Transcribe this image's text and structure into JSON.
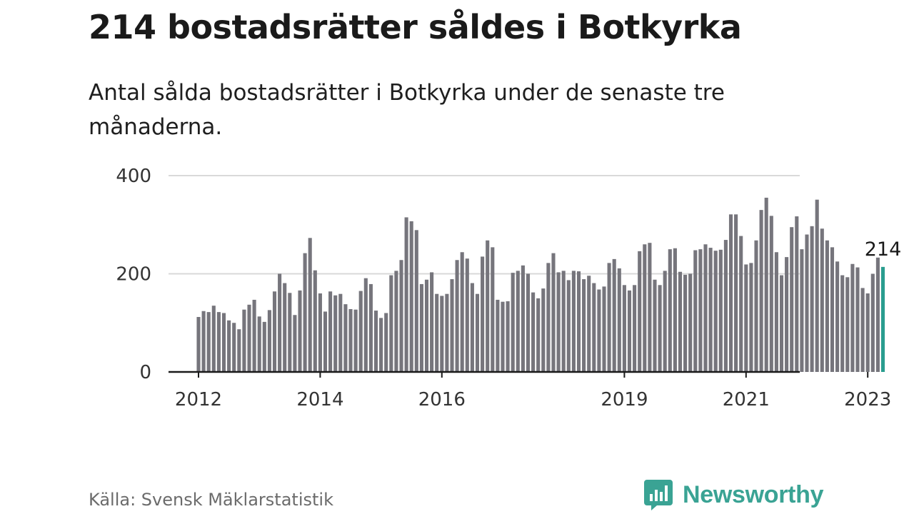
{
  "header": {
    "title": "214 bostadsrätter såldes i Botkyrka",
    "subtitle": "Antal sålda bostadsrätter i Botkyrka under de senaste tre månaderna."
  },
  "footer": {
    "source": "Källa: Svensk Mäklarstatistik",
    "brand": "Newsworthy"
  },
  "colors": {
    "bar": "#76757c",
    "highlight": "#2a9d8f",
    "grid": "#d9d9d9",
    "axis": "#1a1a1a",
    "brand": "#3aa394"
  },
  "chart_data": {
    "type": "bar",
    "title": "214 bostadsrätter såldes i Botkyrka",
    "xlabel": "",
    "ylabel": "",
    "ylim": [
      0,
      400
    ],
    "y_ticks": [
      0,
      200,
      400
    ],
    "x_ticks": [
      {
        "label": "2012",
        "index": 0
      },
      {
        "label": "2014",
        "index": 24
      },
      {
        "label": "2016",
        "index": 48
      },
      {
        "label": "2019",
        "index": 84
      },
      {
        "label": "2021",
        "index": 108
      },
      {
        "label": "2023",
        "index": 132
      }
    ],
    "start": "2012-01",
    "highlight_label": "214",
    "values": [
      112,
      124,
      122,
      135,
      122,
      120,
      105,
      100,
      87,
      127,
      137,
      147,
      113,
      102,
      126,
      164,
      200,
      181,
      161,
      116,
      166,
      242,
      273,
      207,
      160,
      123,
      164,
      156,
      159,
      138,
      128,
      127,
      165,
      191,
      179,
      125,
      110,
      120,
      197,
      206,
      228,
      315,
      307,
      289,
      179,
      188,
      203,
      159,
      155,
      159,
      189,
      228,
      244,
      231,
      181,
      159,
      235,
      268,
      254,
      147,
      143,
      144,
      202,
      206,
      217,
      200,
      162,
      150,
      170,
      222,
      242,
      203,
      206,
      187,
      206,
      205,
      189,
      196,
      181,
      168,
      174,
      222,
      230,
      211,
      177,
      166,
      177,
      246,
      260,
      263,
      188,
      177,
      206,
      250,
      252,
      204,
      198,
      200,
      248,
      250,
      260,
      253,
      247,
      249,
      269,
      321,
      321,
      277,
      219,
      222,
      268,
      330,
      355,
      318,
      244,
      197,
      234,
      295,
      317,
      250,
      280,
      297,
      351,
      292,
      268,
      254,
      225,
      197,
      193,
      220,
      213,
      171,
      160,
      200,
      233,
      214
    ]
  }
}
